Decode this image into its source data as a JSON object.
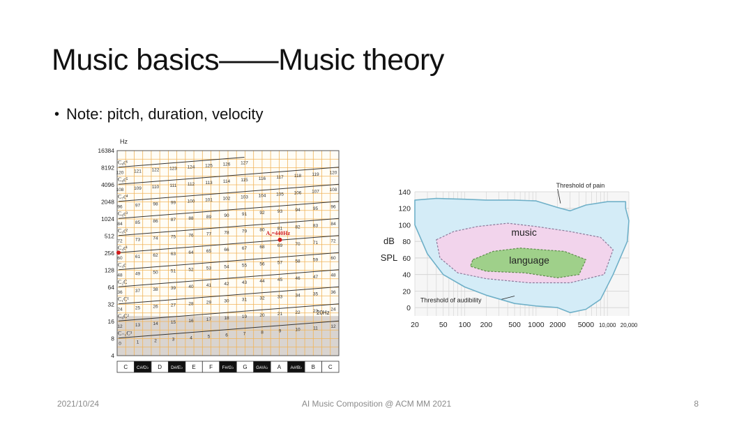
{
  "slide": {
    "title": "Music basics——Music theory",
    "bullet": "Note: pitch, duration, velocity",
    "footer_date": "2021/10/24",
    "footer_center": "AI Music Composition @ ACM MM 2021",
    "page_number": "8"
  },
  "chart_data": [
    {
      "type": "line",
      "ylabel": "Hz",
      "y_scale": "log2",
      "yticks": [
        "16384",
        "8192",
        "4096",
        "2048",
        "1024",
        "512",
        "256",
        "128",
        "64",
        "32",
        "16",
        "8",
        "4"
      ],
      "x_categories": [
        "C",
        "C#/D♭",
        "D",
        "D#/E♭",
        "E",
        "F",
        "F#/G♭",
        "G",
        "G#/A♭",
        "A",
        "A#/B♭",
        "B",
        "C"
      ],
      "black_keys": [
        1,
        3,
        6,
        8,
        10
      ],
      "octave_labels": [
        {
          "octave": 9,
          "label": "C₉c⁶"
        },
        {
          "octave": 8,
          "label": "C₈c⁵"
        },
        {
          "octave": 7,
          "label": "C₇c⁴"
        },
        {
          "octave": 6,
          "label": "C₆c³"
        },
        {
          "octave": 5,
          "label": "C₅c²"
        },
        {
          "octave": 4,
          "label": "C₄c¹"
        },
        {
          "octave": 3,
          "label": "C₃c"
        },
        {
          "octave": 2,
          "label": "C₂C"
        },
        {
          "octave": 1,
          "label": "C₁C¹"
        },
        {
          "octave": 0,
          "label": "C₀C²"
        },
        {
          "octave": -1,
          "label": "C₋₁C³"
        }
      ],
      "note_numbers": "MIDI note number 0–127 along each octave line",
      "annotations": [
        {
          "text": "A₄=440Hz",
          "hz": 440,
          "note": 69
        },
        {
          "text": "20Hz",
          "hz": 20
        }
      ],
      "highlight_note": {
        "note": 60,
        "hz": 261.6
      }
    },
    {
      "type": "area",
      "ylabel_line1": "dB",
      "ylabel_line2": "SPL",
      "x_scale": "log",
      "xticks": [
        "20",
        "50",
        "100",
        "200",
        "500",
        "1000",
        "2000",
        "5000",
        "10,000",
        "20,000"
      ],
      "yticks": [
        "140",
        "120",
        "100",
        "80",
        "60",
        "40",
        "20",
        "0"
      ],
      "ylim": [
        -10,
        140
      ],
      "regions": [
        {
          "name": "music",
          "color": "#f2d4ec"
        },
        {
          "name": "language",
          "color": "#9fd08a"
        }
      ],
      "curves": [
        {
          "name": "Threshold of pain"
        },
        {
          "name": "Threshold of audibility"
        }
      ],
      "fill_color": "#d4ecf7"
    }
  ]
}
